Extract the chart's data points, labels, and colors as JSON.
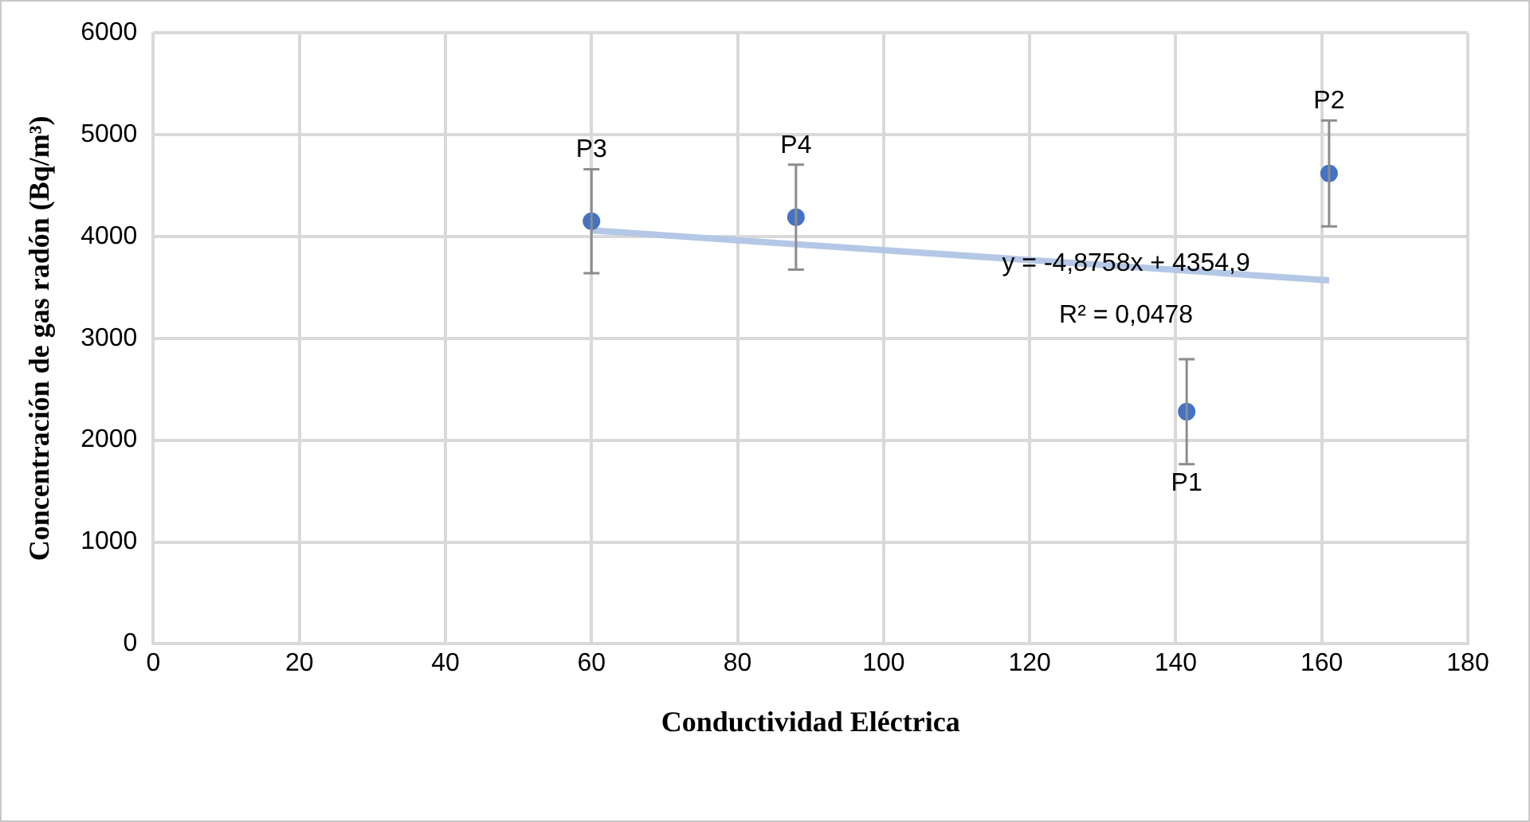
{
  "chart_data": {
    "type": "scatter",
    "xlabel": "Conductividad Eléctrica",
    "ylabel": "Concentración de gas radón (Bq/m³)",
    "x": [
      60,
      88,
      141.5,
      161
    ],
    "series": [
      {
        "type": "scatter",
        "color": "#4472c4",
        "values": [
          4150,
          4190,
          2280,
          4620
        ],
        "errors": [
          510,
          515,
          515,
          520
        ],
        "marker": "circle"
      },
      {
        "type": "line",
        "color": "#b4c7e7",
        "x": [
          60,
          161
        ],
        "values": [
          4060,
          3570
        ],
        "marker": "none"
      }
    ],
    "xlim": [
      0,
      180
    ],
    "xticks": [
      0,
      20,
      40,
      60,
      80,
      100,
      120,
      140,
      160,
      180
    ],
    "ylim": [
      0,
      6000
    ],
    "yticks": [
      0,
      1000,
      2000,
      3000,
      4000,
      5000,
      6000
    ],
    "grid": true,
    "legend": false,
    "annotations": [
      {
        "text": "P3",
        "x": 60,
        "y": 4150
      },
      {
        "text": "P4",
        "x": 88,
        "y": 4190
      },
      {
        "text": "P1",
        "x": 141.5,
        "y": 2280
      },
      {
        "text": "P2",
        "x": 161,
        "y": 4620
      },
      "y = -4,8758x + 4354,9",
      "R² = 0,0478"
    ]
  }
}
